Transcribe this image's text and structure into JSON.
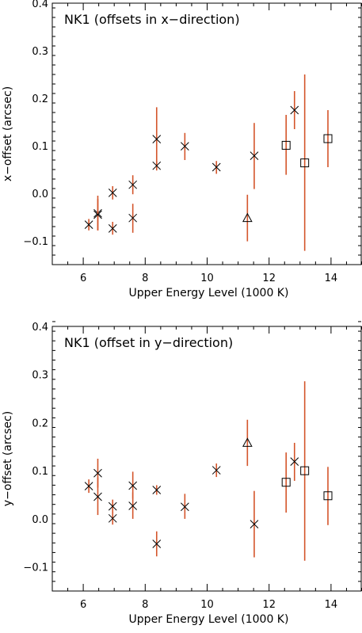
{
  "figure": {
    "background": "#ffffff",
    "axis_color": "#000000",
    "errorbar_color": "#d4552b",
    "marker_color": "#000000"
  },
  "chart_data": [
    {
      "type": "scatter",
      "title": "NK1 (offsets in x−direction)",
      "xlabel": "Upper Energy Level (1000 K)",
      "ylabel": "x−offset (arcsec)",
      "xlim": [
        5.0,
        15.0
      ],
      "ylim": [
        -0.15,
        0.4
      ],
      "xticks": [
        6,
        8,
        10,
        12,
        14
      ],
      "xtick_labels": [
        "6",
        "8",
        "10",
        "12",
        "14"
      ],
      "yticks": [
        -0.1,
        0.0,
        0.1,
        0.2,
        0.3,
        0.4
      ],
      "ytick_labels": [
        "−0.1",
        "0.0",
        "0.1",
        "0.2",
        "0.3",
        "0.4"
      ],
      "grid": false,
      "series": [
        {
          "marker": "x",
          "points": [
            {
              "x": 6.18,
              "y": -0.066,
              "lo": -0.078,
              "hi": -0.054
            },
            {
              "x": 6.47,
              "y": -0.042,
              "lo": -0.078,
              "hi": -0.005
            },
            {
              "x": 6.47,
              "y": -0.045,
              "lo": -0.078,
              "hi": -0.012
            },
            {
              "x": 6.95,
              "y": -0.074,
              "lo": -0.087,
              "hi": -0.06
            },
            {
              "x": 6.95,
              "y": 0.001,
              "lo": -0.013,
              "hi": 0.015
            },
            {
              "x": 7.6,
              "y": 0.018,
              "lo": -0.002,
              "hi": 0.038
            },
            {
              "x": 7.6,
              "y": -0.052,
              "lo": -0.083,
              "hi": -0.022
            },
            {
              "x": 8.37,
              "y": 0.114,
              "lo": 0.057,
              "hi": 0.181
            },
            {
              "x": 8.37,
              "y": 0.058,
              "lo": 0.048,
              "hi": 0.068
            },
            {
              "x": 9.28,
              "y": 0.099,
              "lo": 0.07,
              "hi": 0.127
            },
            {
              "x": 10.3,
              "y": 0.055,
              "lo": 0.041,
              "hi": 0.068
            },
            {
              "x": 11.52,
              "y": 0.079,
              "lo": 0.009,
              "hi": 0.148
            },
            {
              "x": 12.82,
              "y": 0.175,
              "lo": 0.135,
              "hi": 0.215
            }
          ]
        },
        {
          "marker": "triangle",
          "points": [
            {
              "x": 11.3,
              "y": -0.052,
              "lo": -0.101,
              "hi": -0.003
            }
          ]
        },
        {
          "marker": "square",
          "points": [
            {
              "x": 12.55,
              "y": 0.101,
              "lo": 0.039,
              "hi": 0.165
            },
            {
              "x": 13.15,
              "y": 0.064,
              "lo": -0.121,
              "hi": 0.25
            },
            {
              "x": 13.9,
              "y": 0.115,
              "lo": 0.055,
              "hi": 0.175
            }
          ]
        }
      ]
    },
    {
      "type": "scatter",
      "title": "NK1 (offset in y−direction)",
      "xlabel": "Upper Energy Level (1000 K)",
      "ylabel": "y−offset (arcsec)",
      "xlim": [
        5.0,
        15.0
      ],
      "ylim": [
        -0.15,
        0.4
      ],
      "xticks": [
        6,
        8,
        10,
        12,
        14
      ],
      "xtick_labels": [
        "6",
        "8",
        "10",
        "12",
        "14"
      ],
      "yticks": [
        -0.1,
        0.0,
        0.1,
        0.2,
        0.3,
        0.4
      ],
      "ytick_labels": [
        "−0.1",
        "0.0",
        "0.1",
        "0.2",
        "0.3",
        "0.4"
      ],
      "grid": false,
      "series": [
        {
          "marker": "x",
          "points": [
            {
              "x": 6.18,
              "y": 0.068,
              "lo": 0.054,
              "hi": 0.082
            },
            {
              "x": 6.47,
              "y": 0.095,
              "lo": 0.065,
              "hi": 0.125
            },
            {
              "x": 6.47,
              "y": 0.046,
              "lo": 0.008,
              "hi": 0.086
            },
            {
              "x": 6.95,
              "y": 0.026,
              "lo": 0.012,
              "hi": 0.04
            },
            {
              "x": 6.95,
              "y": 0.001,
              "lo": -0.012,
              "hi": 0.014
            },
            {
              "x": 7.6,
              "y": 0.069,
              "lo": 0.042,
              "hi": 0.098
            },
            {
              "x": 7.6,
              "y": 0.027,
              "lo": 0.0,
              "hi": 0.055
            },
            {
              "x": 8.37,
              "y": 0.06,
              "lo": 0.05,
              "hi": 0.07
            },
            {
              "x": 8.37,
              "y": -0.052,
              "lo": -0.078,
              "hi": -0.026
            },
            {
              "x": 9.28,
              "y": 0.025,
              "lo": 0.0,
              "hi": 0.052
            },
            {
              "x": 10.3,
              "y": 0.101,
              "lo": 0.087,
              "hi": 0.115
            },
            {
              "x": 11.52,
              "y": -0.011,
              "lo": -0.08,
              "hi": 0.058
            },
            {
              "x": 12.82,
              "y": 0.119,
              "lo": 0.079,
              "hi": 0.158
            }
          ]
        },
        {
          "marker": "triangle",
          "points": [
            {
              "x": 11.3,
              "y": 0.158,
              "lo": 0.11,
              "hi": 0.206
            }
          ]
        },
        {
          "marker": "square",
          "points": [
            {
              "x": 12.55,
              "y": 0.076,
              "lo": 0.013,
              "hi": 0.138
            },
            {
              "x": 13.15,
              "y": 0.1,
              "lo": -0.087,
              "hi": 0.286
            },
            {
              "x": 13.9,
              "y": 0.048,
              "lo": -0.013,
              "hi": 0.108
            }
          ]
        }
      ]
    }
  ]
}
